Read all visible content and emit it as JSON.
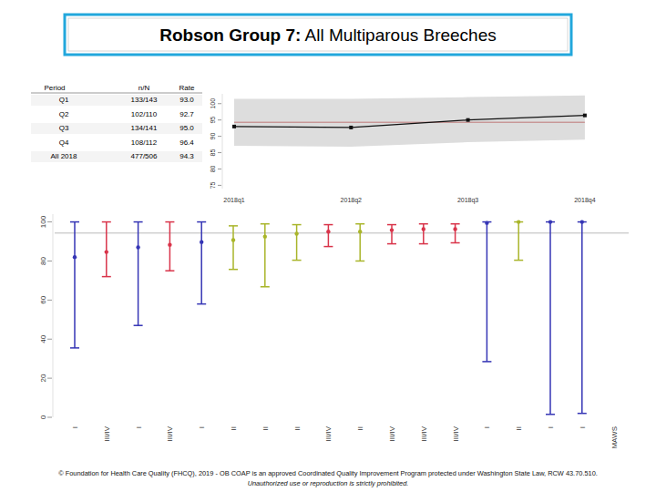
{
  "title": [
    "Robson Group 7:",
    "All Multiparous Breeches"
  ],
  "table": {
    "header": [
      "Period",
      "n/N",
      "Rate"
    ],
    "rows": [
      [
        "Q1",
        "133/143",
        "93.0"
      ],
      [
        "Q2",
        "102/110",
        "92.7"
      ],
      [
        "Q3",
        "134/141",
        "95.0"
      ],
      [
        "Q4",
        "108/112",
        "96.4"
      ],
      [
        "All 2018",
        "477/506",
        "94.3"
      ]
    ]
  },
  "chart_data": [
    {
      "type": "line",
      "categories": [
        "2018q1",
        "2018q2",
        "2018q3",
        "2018q4"
      ],
      "values": [
        93.0,
        92.7,
        95.0,
        96.4
      ],
      "reference": 94.3,
      "band_lower": [
        87.1,
        86.8,
        88.2,
        89.0
      ],
      "band_upper": [
        101.5,
        101.5,
        102.0,
        102.5
      ],
      "color": "#111111",
      "marker": "square",
      "ylim": [
        74,
        103
      ],
      "yticks": [
        75,
        80,
        85,
        90,
        95,
        100
      ]
    },
    {
      "type": "errorbar",
      "categories": [
        "I",
        "III/IV",
        "I",
        "III/IV",
        "I",
        "II",
        "II",
        "II",
        "III/IV",
        "II",
        "III/IV",
        "III/IV",
        "III/IV",
        "I",
        "II",
        "I",
        "I",
        "MAWS"
      ],
      "values": [
        82,
        84.6,
        87,
        88.3,
        89.7,
        90.7,
        92.5,
        94,
        95,
        95,
        95.8,
        96.3,
        96.3,
        99.5,
        100,
        100,
        100,
        null
      ],
      "lower": [
        35.5,
        72,
        47,
        75,
        58,
        75.7,
        66.8,
        80.4,
        87.4,
        80,
        88.8,
        88.8,
        89.3,
        28.5,
        80.4,
        1.5,
        2,
        null
      ],
      "upper": [
        100,
        100,
        100,
        100,
        100,
        98,
        99,
        98.6,
        98.6,
        99,
        98.6,
        99,
        99,
        100,
        100,
        100,
        100,
        null
      ],
      "colors": [
        "#3535b5",
        "#d9344a",
        "#3535b5",
        "#d9344a",
        "#3535b5",
        "#a9b52a",
        "#a9b52a",
        "#a9b52a",
        "#d9344a",
        "#a9b52a",
        "#d9344a",
        "#d9344a",
        "#d9344a",
        "#3535b5",
        "#a9b52a",
        "#3535b5",
        "#3535b5",
        null
      ],
      "reference": 94.3,
      "ylim": [
        0,
        104
      ],
      "yticks": [
        0,
        20,
        40,
        60,
        80,
        100
      ]
    }
  ],
  "footer": [
    "© Foundation for Health Care Quality (FHCQ), 2019 - OB COAP is an approved Coordinated Quality Improvement Program protected under Washington State Law, RCW 43.70.510.",
    "Unauthorized use or reproduction is strictly prohibited."
  ]
}
